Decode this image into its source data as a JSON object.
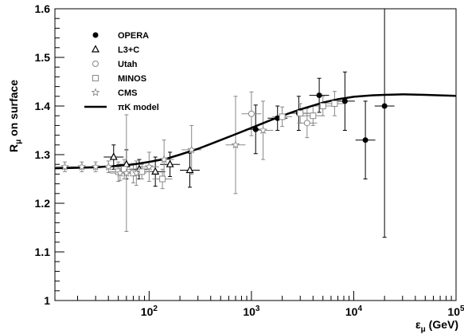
{
  "chart_data": {
    "type": "scatter",
    "title": "",
    "xlabel": "ε",
    "xlabel_sub": "μ",
    "xlabel_unit": " (GeV)",
    "ylabel": "R",
    "ylabel_sub": "μ",
    "ylabel_suffix": " on surface",
    "x_scale": "log",
    "xlim": [
      12,
      100000
    ],
    "ylim": [
      1.0,
      1.6
    ],
    "grid": false,
    "legend_placement": "top-left",
    "x_ticks": [
      {
        "value": 100,
        "base": "10",
        "exp": "2"
      },
      {
        "value": 1000,
        "base": "10",
        "exp": "3"
      },
      {
        "value": 10000,
        "base": "10",
        "exp": "4"
      },
      {
        "value": 100000,
        "base": "10",
        "exp": "5"
      }
    ],
    "y_ticks": [
      "1",
      "1.1",
      "1.2",
      "1.3",
      "1.4",
      "1.5",
      "1.6"
    ],
    "legend": [
      {
        "label": "OPERA",
        "marker": "filled-circle",
        "color": "#000000"
      },
      {
        "label": "L3+C",
        "marker": "open-triangle",
        "color": "#000000"
      },
      {
        "label": "Utah",
        "marker": "open-circle",
        "color": "#888888"
      },
      {
        "label": "MINOS",
        "marker": "open-square",
        "color": "#888888"
      },
      {
        "label": "CMS",
        "marker": "open-star",
        "color": "#888888"
      },
      {
        "label": "πK model",
        "marker": "line",
        "color": "#000000"
      }
    ],
    "series": [
      {
        "name": "OPERA",
        "marker": "filled-circle",
        "color": "#000000",
        "points": [
          {
            "x": 1100,
            "y": 1.352,
            "yerr": 0.05
          },
          {
            "x": 1800,
            "y": 1.375,
            "yerr": 0.025
          },
          {
            "x": 2900,
            "y": 1.385,
            "yerr": 0.035
          },
          {
            "x": 4600,
            "y": 1.422,
            "yerr": 0.035
          },
          {
            "x": 8200,
            "y": 1.41,
            "yerr": 0.06
          },
          {
            "x": 13000,
            "y": 1.33,
            "yerr": 0.08
          },
          {
            "x": 20000,
            "y": 1.4,
            "yerr": 0.27
          }
        ]
      },
      {
        "name": "L3+C",
        "marker": "open-triangle",
        "color": "#000000",
        "points": [
          {
            "x": 45,
            "y": 1.295,
            "yerr": 0.025
          },
          {
            "x": 60,
            "y": 1.28,
            "yerr": 0.03
          },
          {
            "x": 80,
            "y": 1.27,
            "yerr": 0.02
          },
          {
            "x": 115,
            "y": 1.265,
            "yerr": 0.03
          },
          {
            "x": 160,
            "y": 1.28,
            "yerr": 0.025
          },
          {
            "x": 250,
            "y": 1.268,
            "yerr": 0.035
          }
        ]
      },
      {
        "name": "Utah",
        "marker": "open-circle",
        "color": "#888888",
        "points": [
          {
            "x": 1000,
            "y": 1.384,
            "yerr": 0.045
          },
          {
            "x": 3500,
            "y": 1.365,
            "yerr": 0.03
          }
        ]
      },
      {
        "name": "MINOS",
        "marker": "open-square",
        "color": "#888888",
        "points": [
          {
            "x": 50,
            "y": 1.265,
            "yerr": 0.02
          },
          {
            "x": 57,
            "y": 1.27,
            "yerr": 0.02
          },
          {
            "x": 70,
            "y": 1.262,
            "yerr": 0.02
          },
          {
            "x": 85,
            "y": 1.265,
            "yerr": 0.015
          },
          {
            "x": 135,
            "y": 1.25,
            "yerr": 0.02
          },
          {
            "x": 2000,
            "y": 1.378,
            "yerr": 0.02
          },
          {
            "x": 3000,
            "y": 1.385,
            "yerr": 0.02
          },
          {
            "x": 4000,
            "y": 1.38,
            "yerr": 0.02
          },
          {
            "x": 5000,
            "y": 1.4,
            "yerr": 0.02
          },
          {
            "x": 6500,
            "y": 1.405,
            "yerr": 0.025
          }
        ]
      },
      {
        "name": "CMS",
        "marker": "open-star",
        "color": "#888888",
        "points": [
          {
            "x": 15,
            "y": 1.275,
            "yerr": 0.01
          },
          {
            "x": 22,
            "y": 1.275,
            "yerr": 0.01
          },
          {
            "x": 30,
            "y": 1.275,
            "yerr": 0.01
          },
          {
            "x": 40,
            "y": 1.275,
            "yerr": 0.012
          },
          {
            "x": 52,
            "y": 1.262,
            "yerr": 0.015
          },
          {
            "x": 60,
            "y": 1.262,
            "yerr": 0.12
          },
          {
            "x": 75,
            "y": 1.262,
            "yerr": 0.025
          },
          {
            "x": 100,
            "y": 1.275,
            "yerr": 0.03
          },
          {
            "x": 140,
            "y": 1.29,
            "yerr": 0.04
          },
          {
            "x": 260,
            "y": 1.31,
            "yerr": 0.05
          },
          {
            "x": 700,
            "y": 1.32,
            "yerr": 0.1
          },
          {
            "x": 1300,
            "y": 1.35,
            "yerr": 0.06
          }
        ]
      }
    ],
    "model_curve": {
      "name": "πK model",
      "x": [
        12,
        20,
        30,
        50,
        70,
        100,
        150,
        200,
        300,
        400,
        500,
        700,
        1000,
        1500,
        2000,
        3000,
        5000,
        7000,
        10000,
        15000,
        20000,
        30000,
        50000,
        70000,
        100000
      ],
      "y": [
        1.272,
        1.273,
        1.274,
        1.277,
        1.28,
        1.285,
        1.292,
        1.3,
        1.312,
        1.322,
        1.33,
        1.342,
        1.355,
        1.37,
        1.38,
        1.393,
        1.407,
        1.414,
        1.419,
        1.422,
        1.423,
        1.424,
        1.423,
        1.422,
        1.421
      ]
    }
  }
}
